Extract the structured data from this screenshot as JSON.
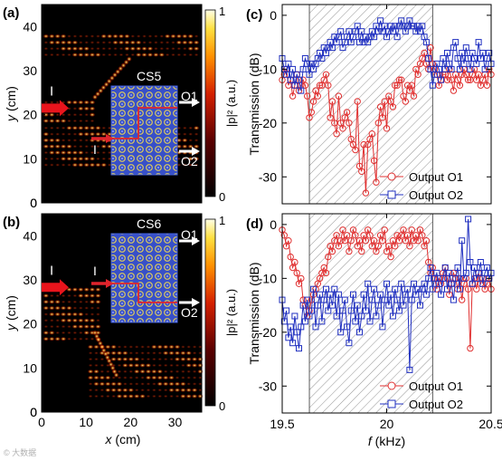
{
  "watermark": "© 大数据",
  "chart_data": [
    {
      "panel": "(a)",
      "type": "heatmap",
      "xlabel": "x (cm)",
      "ylabel": "y (cm)",
      "xlim": [
        0,
        36
      ],
      "ylim": [
        0,
        45
      ],
      "xticks": [
        0,
        10,
        20,
        30
      ],
      "yticks": [
        0,
        10,
        20,
        30,
        40
      ],
      "colorbar": {
        "label": "|p|² (a.u.)",
        "min": 0,
        "max": 1,
        "ticks": [
          "0",
          "1"
        ]
      },
      "inset": {
        "label": "CS5",
        "outputs": [
          "O1",
          "O2"
        ],
        "input": "I"
      },
      "input_arrow": "I",
      "pattern": "a"
    },
    {
      "panel": "(b)",
      "type": "heatmap",
      "xlabel": "x (cm)",
      "ylabel": "y (cm)",
      "xlim": [
        0,
        36
      ],
      "ylim": [
        0,
        45
      ],
      "xticks": [
        0,
        10,
        20,
        30
      ],
      "yticks": [
        0,
        10,
        20,
        30,
        40
      ],
      "colorbar": {
        "label": "|p|² (a.u.)",
        "min": 0,
        "max": 1,
        "ticks": [
          "0",
          "1"
        ]
      },
      "inset": {
        "label": "CS6",
        "outputs": [
          "O1",
          "O2"
        ],
        "input": "I"
      },
      "input_arrow": "I",
      "pattern": "b"
    },
    {
      "panel": "(c)",
      "type": "line",
      "xlabel": "",
      "ylabel": "Transmission (dB)",
      "xlim": [
        19.5,
        20.5
      ],
      "ylim": [
        -35,
        2
      ],
      "yticks": [
        -30,
        -20,
        -10,
        0
      ],
      "band": [
        19.63,
        20.22
      ],
      "legend": "bottom-right",
      "series": [
        {
          "name": "Output O1",
          "color": "#e03030",
          "marker": "circle",
          "x": [
            19.5,
            19.51,
            19.52,
            19.53,
            19.54,
            19.55,
            19.56,
            19.57,
            19.58,
            19.59,
            19.6,
            19.61,
            19.62,
            19.63,
            19.64,
            19.65,
            19.66,
            19.67,
            19.68,
            19.69,
            19.7,
            19.71,
            19.72,
            19.73,
            19.74,
            19.75,
            19.76,
            19.77,
            19.78,
            19.79,
            19.8,
            19.81,
            19.82,
            19.83,
            19.84,
            19.85,
            19.86,
            19.87,
            19.88,
            19.89,
            19.9,
            19.91,
            19.92,
            19.93,
            19.94,
            19.95,
            19.96,
            19.97,
            19.98,
            19.99,
            20.0,
            20.01,
            20.02,
            20.03,
            20.04,
            20.05,
            20.06,
            20.07,
            20.08,
            20.09,
            20.1,
            20.11,
            20.12,
            20.13,
            20.14,
            20.15,
            20.16,
            20.17,
            20.18,
            20.19,
            20.2,
            20.21,
            20.22,
            20.23,
            20.24,
            20.25,
            20.26,
            20.27,
            20.28,
            20.29,
            20.3,
            20.31,
            20.32,
            20.33,
            20.34,
            20.35,
            20.36,
            20.37,
            20.38,
            20.39,
            20.4,
            20.41,
            20.42,
            20.43,
            20.44,
            20.45,
            20.46,
            20.47,
            20.48,
            20.49,
            20.5
          ],
          "y": [
            -12,
            -11,
            -10,
            -13,
            -12,
            -15,
            -13,
            -11,
            -14,
            -13,
            -12,
            -13,
            -15,
            -19,
            -18,
            -16,
            -14,
            -15,
            -13,
            -13,
            -12,
            -11,
            -13,
            -19,
            -16,
            -20,
            -22,
            -15,
            -20,
            -21,
            -19,
            -18,
            -20,
            -23,
            -24,
            -25,
            -16,
            -28,
            -29,
            -24,
            -33,
            -24,
            -23,
            -22,
            -27,
            -31,
            -20,
            -17,
            -19,
            -16,
            -21,
            -15,
            -16,
            -17,
            -13,
            -13,
            -12,
            -12,
            -15,
            -16,
            -13,
            -14,
            -13,
            -15,
            -10,
            -11,
            -9,
            -8,
            -7,
            -9,
            -10,
            -6,
            -9,
            -10,
            -11,
            -13,
            -12,
            -11,
            -11,
            -12,
            -10,
            -12,
            -14,
            -11,
            -12,
            -13,
            -11,
            -10,
            -11,
            -12,
            -12,
            -11,
            -10,
            -12,
            -11,
            -13,
            -12,
            -11,
            -13,
            -10,
            -11
          ]
        },
        {
          "name": "Output O2",
          "color": "#2030c0",
          "marker": "square",
          "x": [
            19.5,
            19.51,
            19.52,
            19.53,
            19.54,
            19.55,
            19.56,
            19.57,
            19.58,
            19.59,
            19.6,
            19.61,
            19.62,
            19.63,
            19.64,
            19.65,
            19.66,
            19.67,
            19.68,
            19.69,
            19.7,
            19.71,
            19.72,
            19.73,
            19.74,
            19.75,
            19.76,
            19.77,
            19.78,
            19.79,
            19.8,
            19.81,
            19.82,
            19.83,
            19.84,
            19.85,
            19.86,
            19.87,
            19.88,
            19.89,
            19.9,
            19.91,
            19.92,
            19.93,
            19.94,
            19.95,
            19.96,
            19.97,
            19.98,
            19.99,
            20.0,
            20.01,
            20.02,
            20.03,
            20.04,
            20.05,
            20.06,
            20.07,
            20.08,
            20.09,
            20.1,
            20.11,
            20.12,
            20.13,
            20.14,
            20.15,
            20.16,
            20.17,
            20.18,
            20.19,
            20.2,
            20.21,
            20.22,
            20.23,
            20.24,
            20.25,
            20.26,
            20.27,
            20.28,
            20.29,
            20.3,
            20.31,
            20.32,
            20.33,
            20.34,
            20.35,
            20.36,
            20.37,
            20.38,
            20.39,
            20.4,
            20.41,
            20.42,
            20.43,
            20.44,
            20.45,
            20.46,
            20.47,
            20.48,
            20.49,
            20.5
          ],
          "y": [
            -8,
            -10,
            -11,
            -9,
            -12,
            -10,
            -13,
            -11,
            -12,
            -14,
            -10,
            -8,
            -9,
            -11,
            -9,
            -10,
            -9,
            -8,
            -7,
            -8,
            -6,
            -7,
            -6,
            -5,
            -6,
            -4,
            -5,
            -4,
            -3,
            -6,
            -5,
            -4,
            -3,
            -5,
            -4,
            -3,
            -2,
            -5,
            -3,
            -5,
            -4,
            -5,
            -4,
            -3,
            -4,
            -2,
            -3,
            -1,
            -3,
            -2,
            -4,
            -3,
            -2,
            -3,
            -2,
            -4,
            -2,
            -1,
            -2,
            -3,
            -2,
            -1,
            -2,
            -2,
            -3,
            -2,
            -3,
            -2,
            -4,
            -5,
            -8,
            -10,
            -13,
            -11,
            -9,
            -10,
            -12,
            -8,
            -10,
            -7,
            -9,
            -10,
            -6,
            -5,
            -8,
            -10,
            -7,
            -9,
            -6,
            -8,
            -10,
            -7,
            -8,
            -9,
            -5,
            -8,
            -7,
            -10,
            -8,
            -7,
            -9
          ]
        }
      ]
    },
    {
      "panel": "(d)",
      "type": "line",
      "xlabel": "f (kHz)",
      "ylabel": "Transmission (dB)",
      "xlim": [
        19.5,
        20.5
      ],
      "ylim": [
        -35,
        2
      ],
      "xticks": [
        "19.5",
        "20",
        "20.5"
      ],
      "yticks": [
        -30,
        -20,
        -10,
        0
      ],
      "band": [
        19.63,
        20.22
      ],
      "legend": "bottom-right",
      "series": [
        {
          "name": "Output O1",
          "color": "#e03030",
          "marker": "circle",
          "x": [
            19.5,
            19.51,
            19.52,
            19.53,
            19.54,
            19.55,
            19.56,
            19.57,
            19.58,
            19.59,
            19.6,
            19.61,
            19.62,
            19.63,
            19.64,
            19.65,
            19.66,
            19.67,
            19.68,
            19.69,
            19.7,
            19.71,
            19.72,
            19.73,
            19.74,
            19.75,
            19.76,
            19.77,
            19.78,
            19.79,
            19.8,
            19.81,
            19.82,
            19.83,
            19.84,
            19.85,
            19.86,
            19.87,
            19.88,
            19.89,
            19.9,
            19.91,
            19.92,
            19.93,
            19.94,
            19.95,
            19.96,
            19.97,
            19.98,
            19.99,
            20.0,
            20.01,
            20.02,
            20.03,
            20.04,
            20.05,
            20.06,
            20.07,
            20.08,
            20.09,
            20.1,
            20.11,
            20.12,
            20.13,
            20.14,
            20.15,
            20.16,
            20.17,
            20.18,
            20.19,
            20.2,
            20.21,
            20.22,
            20.23,
            20.24,
            20.25,
            20.26,
            20.27,
            20.28,
            20.29,
            20.3,
            20.31,
            20.32,
            20.33,
            20.34,
            20.35,
            20.36,
            20.37,
            20.38,
            20.39,
            20.4,
            20.41,
            20.42,
            20.43,
            20.44,
            20.45,
            20.46,
            20.47,
            20.48,
            20.49,
            20.5
          ],
          "y": [
            -1,
            -2,
            -4,
            -3,
            -6,
            -8,
            -7,
            -9,
            -11,
            -10,
            -14,
            -15,
            -17,
            -16,
            -14,
            -13,
            -12,
            -11,
            -10,
            -9,
            -8,
            -9,
            -6,
            -4,
            -5,
            -3,
            -2,
            -4,
            -3,
            -1,
            -3,
            -2,
            -5,
            -3,
            -1,
            -2,
            -4,
            -3,
            -5,
            -2,
            -3,
            -1,
            -2,
            -4,
            -3,
            -5,
            -4,
            -2,
            -3,
            -1,
            -5,
            -4,
            -6,
            -3,
            -4,
            -2,
            -3,
            -2,
            -1,
            -3,
            -2,
            -4,
            -1,
            -3,
            -2,
            -3,
            -1,
            -2,
            -4,
            -3,
            -7,
            -9,
            -8,
            -10,
            -12,
            -10,
            -11,
            -9,
            -8,
            -10,
            -13,
            -11,
            -9,
            -10,
            -12,
            -10,
            -14,
            -11,
            -10,
            -12,
            -23,
            -11,
            -10,
            -12,
            -9,
            -11,
            -10,
            -12,
            -11,
            -10,
            -12
          ]
        },
        {
          "name": "Output O2",
          "color": "#2030c0",
          "marker": "square",
          "x": [
            19.5,
            19.51,
            19.52,
            19.53,
            19.54,
            19.55,
            19.56,
            19.57,
            19.58,
            19.59,
            19.6,
            19.61,
            19.62,
            19.63,
            19.64,
            19.65,
            19.66,
            19.67,
            19.68,
            19.69,
            19.7,
            19.71,
            19.72,
            19.73,
            19.74,
            19.75,
            19.76,
            19.77,
            19.78,
            19.79,
            19.8,
            19.81,
            19.82,
            19.83,
            19.84,
            19.85,
            19.86,
            19.87,
            19.88,
            19.89,
            19.9,
            19.91,
            19.92,
            19.93,
            19.94,
            19.95,
            19.96,
            19.97,
            19.98,
            19.99,
            20.0,
            20.01,
            20.02,
            20.03,
            20.04,
            20.05,
            20.06,
            20.07,
            20.08,
            20.09,
            20.1,
            20.11,
            20.12,
            20.13,
            20.14,
            20.15,
            20.16,
            20.17,
            20.18,
            20.19,
            20.2,
            20.21,
            20.22,
            20.23,
            20.24,
            20.25,
            20.26,
            20.27,
            20.28,
            20.29,
            20.3,
            20.31,
            20.32,
            20.33,
            20.34,
            20.35,
            20.36,
            20.37,
            20.38,
            20.39,
            20.4,
            20.41,
            20.42,
            20.43,
            20.44,
            20.45,
            20.46,
            20.47,
            20.48,
            20.49,
            20.5
          ],
          "y": [
            -14,
            -18,
            -16,
            -21,
            -19,
            -22,
            -17,
            -20,
            -23,
            -19,
            -15,
            -18,
            -14,
            -17,
            -16,
            -12,
            -19,
            -15,
            -13,
            -18,
            -14,
            -12,
            -16,
            -13,
            -15,
            -12,
            -17,
            -13,
            -20,
            -16,
            -14,
            -19,
            -22,
            -16,
            -13,
            -18,
            -15,
            -20,
            -17,
            -13,
            -16,
            -11,
            -18,
            -14,
            -12,
            -17,
            -15,
            -13,
            -19,
            -14,
            -11,
            -15,
            -13,
            -17,
            -12,
            -14,
            -16,
            -11,
            -15,
            -13,
            -12,
            -27,
            -14,
            -11,
            -13,
            -12,
            -15,
            -12,
            -11,
            -13,
            -10,
            -8,
            -12,
            -10,
            -9,
            -11,
            -13,
            -10,
            -8,
            -12,
            -9,
            -11,
            -14,
            -10,
            -8,
            -12,
            -3,
            -10,
            -9,
            1,
            -7,
            -11,
            -8,
            -10,
            -9,
            -7,
            -11,
            -9,
            -8,
            -10,
            -9
          ]
        }
      ]
    }
  ]
}
